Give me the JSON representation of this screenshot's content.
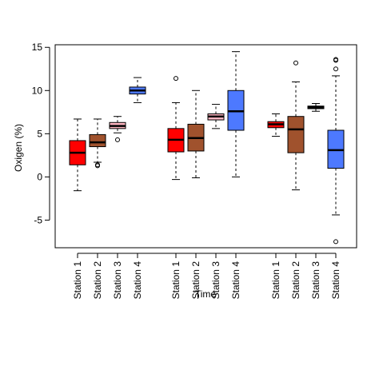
{
  "chart_data": {
    "type": "boxplot",
    "xlabel": "Time",
    "ylabel": "Oxigen (%)",
    "ylim": [
      -8.2,
      15.3
    ],
    "yticks": [
      -5,
      0,
      5,
      10,
      15
    ],
    "grid": false,
    "legend": "none",
    "categories": [
      "Station 1",
      "Station 2",
      "Station 3",
      "Station 4",
      "Station 1",
      "Station 2",
      "Station 3",
      "Station 4",
      "Station 1",
      "Station 2",
      "Station 3",
      "Station 4"
    ],
    "groups": [
      [
        {
          "label": "Station 1",
          "color": "#ff0000",
          "whisker_low": -1.6,
          "q1": 1.4,
          "median": 2.8,
          "q3": 4.2,
          "whisker_high": 6.7,
          "outliers": []
        },
        {
          "label": "Station 2",
          "color": "#a0522d",
          "whisker_low": 1.7,
          "q1": 3.5,
          "median": 4.0,
          "q3": 4.9,
          "whisker_high": 6.7,
          "outliers": [
            1.3,
            1.4
          ]
        },
        {
          "label": "Station 3",
          "color": "#ffb6c1",
          "whisker_low": 5.1,
          "q1": 5.6,
          "median": 5.9,
          "q3": 6.3,
          "whisker_high": 7.0,
          "outliers": [
            4.3
          ]
        },
        {
          "label": "Station 4",
          "color": "#4d79ff",
          "whisker_low": 8.6,
          "q1": 9.6,
          "median": 10.0,
          "q3": 10.4,
          "whisker_high": 11.5,
          "outliers": []
        }
      ],
      [
        {
          "label": "Station 1",
          "color": "#ff0000",
          "whisker_low": -0.3,
          "q1": 2.9,
          "median": 4.3,
          "q3": 5.6,
          "whisker_high": 8.6,
          "outliers": [
            11.4
          ]
        },
        {
          "label": "Station 2",
          "color": "#a0522d",
          "whisker_low": -0.1,
          "q1": 3.0,
          "median": 4.5,
          "q3": 6.1,
          "whisker_high": 10.0,
          "outliers": []
        },
        {
          "label": "Station 3",
          "color": "#ffb6c1",
          "whisker_low": 5.6,
          "q1": 6.6,
          "median": 7.0,
          "q3": 7.3,
          "whisker_high": 8.4,
          "outliers": []
        },
        {
          "label": "Station 4",
          "color": "#4d79ff",
          "whisker_low": 0.0,
          "q1": 5.4,
          "median": 7.6,
          "q3": 10.0,
          "whisker_high": 14.5,
          "outliers": []
        }
      ],
      [
        {
          "label": "Station 1",
          "color": "#ff0000",
          "whisker_low": 4.7,
          "q1": 5.7,
          "median": 6.1,
          "q3": 6.4,
          "whisker_high": 7.3,
          "outliers": []
        },
        {
          "label": "Station 2",
          "color": "#a0522d",
          "whisker_low": -1.5,
          "q1": 2.8,
          "median": 5.5,
          "q3": 7.0,
          "whisker_high": 11.0,
          "outliers": [
            13.2
          ]
        },
        {
          "label": "Station 3",
          "color": "#000000",
          "whisker_low": 7.6,
          "q1": 7.9,
          "median": 8.0,
          "q3": 8.2,
          "whisker_high": 8.5,
          "outliers": []
        },
        {
          "label": "Station 4",
          "color": "#4d79ff",
          "whisker_low": -4.4,
          "q1": 1.0,
          "median": 3.1,
          "q3": 5.4,
          "whisker_high": 11.7,
          "outliers": [
            -7.5,
            12.5,
            13.5,
            13.6
          ]
        }
      ]
    ]
  }
}
